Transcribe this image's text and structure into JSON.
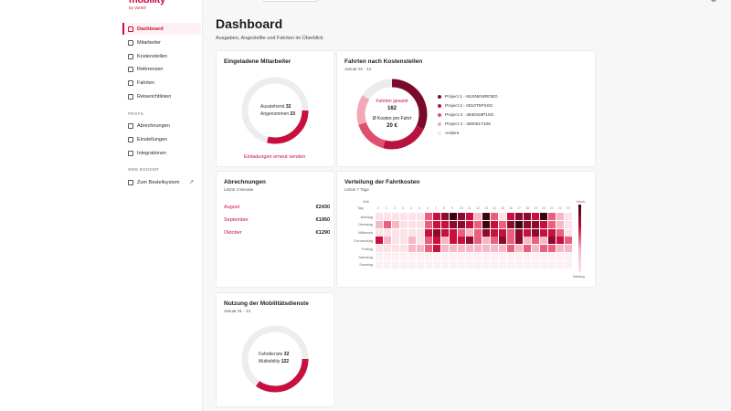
{
  "sidebar": {
    "logo_main": "mobility",
    "logo_sub": "by Vorteil",
    "items": [
      {
        "label": "Dashboard",
        "active": true,
        "icon": "dashboard-icon"
      },
      {
        "label": "Mitarbeiter",
        "icon": "users-icon"
      },
      {
        "label": "Kostenstellen",
        "icon": "cost-center-icon"
      },
      {
        "label": "Referenzen",
        "icon": "reference-icon"
      },
      {
        "label": "Fahrten",
        "icon": "car-icon"
      },
      {
        "label": "Reiserichtlinien",
        "icon": "policy-icon"
      }
    ],
    "profil_label": "PROFIL",
    "profil_items": [
      {
        "label": "Abrechnungen",
        "icon": "invoice-icon"
      },
      {
        "label": "Einstellungen",
        "icon": "settings-icon"
      },
      {
        "label": "Integrationen",
        "icon": "integration-icon"
      }
    ],
    "web_label": "WEB BOOKER",
    "web_items": [
      {
        "label": "Zum Bestellsystem",
        "icon": "booking-icon",
        "external_icon": "↗"
      }
    ]
  },
  "header": {
    "title": "Dashboard",
    "subtitle": "Ausgaben, Angestellte und Fahrten im Überblick"
  },
  "invited": {
    "title": "Eingeladene Mitarbeiter",
    "line1_label": "Ausstehend",
    "line1_value": "32",
    "line2_label": "Angenommen",
    "line2_value": "23",
    "link": "Einladungen erneut senden"
  },
  "trips_cost": {
    "title": "Fahrten nach Kostenstellen",
    "period": "Januar 01 - 14",
    "total_label": "Fahrten gesamt",
    "total_value": "162",
    "avg_label": "Ø Kosten pro Fahrt",
    "avg_value": "20 €",
    "legend": [
      {
        "label": "Project 1 - 8USNEWROED",
        "color": "#7a0a2a"
      },
      {
        "label": "Project 2 - 0010T5PX0G",
        "color": "#b8123e"
      },
      {
        "label": "Project 3 - 384DG8P10G",
        "color": "#e0506e"
      },
      {
        "label": "Project 4 - 4500517106",
        "color": "#f2a8b8"
      },
      {
        "label": "Andere",
        "color": "#ececec"
      }
    ]
  },
  "billing": {
    "title": "Abrechnungen",
    "period": "Letzte 3 Monate",
    "rows": [
      {
        "month": "August",
        "amount": "€2430"
      },
      {
        "month": "September",
        "amount": "€1950"
      },
      {
        "month": "Oktober",
        "amount": "€1290"
      }
    ]
  },
  "distribution": {
    "title": "Verteilung der Fahrtkosten",
    "period": "Letzte 7 Tage",
    "hour_axis_label": "Zeit",
    "day_axis_label": "Tag",
    "hours": [
      "0",
      "1",
      "2",
      "3",
      "4",
      "5",
      "6",
      "7",
      "8",
      "9",
      "10",
      "11",
      "12",
      "13",
      "14",
      "15",
      "16",
      "17",
      "18",
      "19",
      "20",
      "21",
      "22",
      "23"
    ],
    "days": [
      "Montag",
      "Dienstag",
      "Mittwoch",
      "Donnerstag",
      "Freitag",
      "Samstag",
      "Sonntag"
    ],
    "scale_high": "Hoch",
    "scale_low": "Niedrig"
  },
  "mobility": {
    "title": "Nutzung der Mobilitätsdienste",
    "period": "Januar 01 - 14",
    "line1_label": "Fahrdienste",
    "line1_value": "32",
    "line2_label": "Multiobility",
    "line2_value": "122"
  },
  "colors": {
    "accent": "#c8103e",
    "heat_0": "#fbe3e9",
    "heat_1": "#f6b8c6",
    "heat_2": "#e8607e",
    "heat_3": "#c8103e",
    "heat_4": "#8a0b2e",
    "heat_5": "#3a0410"
  }
}
